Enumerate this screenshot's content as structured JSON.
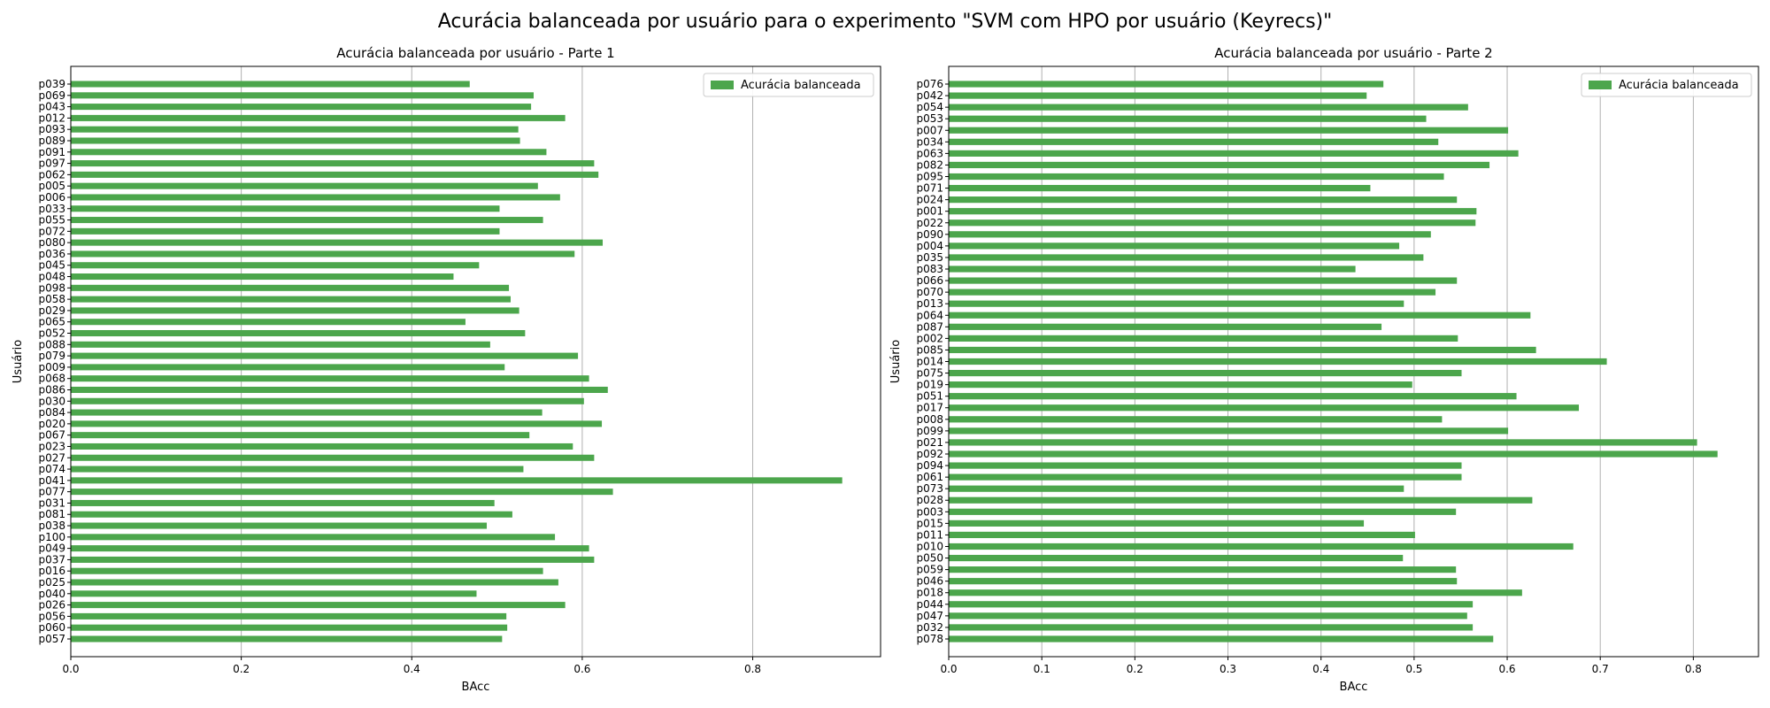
{
  "figure": {
    "title": "Acurácia balanceada por usuário para o experimento \"SVM com HPO por usuário (Keyrecs)\""
  },
  "chart_data": [
    {
      "type": "bar",
      "orientation": "horizontal",
      "title": "Acurácia balanceada por usuário - Parte 1",
      "xlabel": "BAcc",
      "ylabel": "Usuário",
      "xlim": [
        0,
        0.95
      ],
      "xticks": [
        0.0,
        0.2,
        0.4,
        0.6,
        0.8
      ],
      "xtick_labels": [
        "0.0",
        "0.2",
        "0.4",
        "0.6",
        "0.8"
      ],
      "grid": "x",
      "legend": {
        "position": "top-right",
        "entries": [
          "Acurácia balanceada"
        ]
      },
      "bar_color": "#4ca64c",
      "categories": [
        "p039",
        "p069",
        "p043",
        "p012",
        "p093",
        "p089",
        "p091",
        "p097",
        "p062",
        "p005",
        "p006",
        "p033",
        "p055",
        "p072",
        "p080",
        "p036",
        "p045",
        "p048",
        "p098",
        "p058",
        "p029",
        "p065",
        "p052",
        "p088",
        "p079",
        "p009",
        "p068",
        "p086",
        "p030",
        "p084",
        "p020",
        "p067",
        "p023",
        "p027",
        "p074",
        "p041",
        "p077",
        "p031",
        "p081",
        "p038",
        "p100",
        "p049",
        "p037",
        "p016",
        "p025",
        "p040",
        "p026",
        "p056",
        "p060",
        "p057"
      ],
      "series": [
        {
          "name": "Acurácia balanceada",
          "values": [
            0.468,
            0.543,
            0.54,
            0.58,
            0.525,
            0.527,
            0.558,
            0.614,
            0.619,
            0.548,
            0.574,
            0.503,
            0.554,
            0.503,
            0.624,
            0.591,
            0.479,
            0.449,
            0.514,
            0.516,
            0.526,
            0.463,
            0.533,
            0.492,
            0.595,
            0.509,
            0.608,
            0.63,
            0.602,
            0.553,
            0.623,
            0.538,
            0.589,
            0.614,
            0.531,
            0.905,
            0.636,
            0.497,
            0.518,
            0.488,
            0.568,
            0.608,
            0.614,
            0.554,
            0.572,
            0.476,
            0.58,
            0.511,
            0.512,
            0.506
          ]
        }
      ]
    },
    {
      "type": "bar",
      "orientation": "horizontal",
      "title": "Acurácia balanceada por usuário - Parte 2",
      "xlabel": "BAcc",
      "ylabel": "Usuário",
      "xlim": [
        0,
        0.87
      ],
      "xticks": [
        0.0,
        0.1,
        0.2,
        0.3,
        0.4,
        0.5,
        0.6,
        0.7,
        0.8
      ],
      "xtick_labels": [
        "0.0",
        "0.1",
        "0.2",
        "0.3",
        "0.4",
        "0.5",
        "0.6",
        "0.7",
        "0.8"
      ],
      "grid": "x",
      "legend": {
        "position": "top-right",
        "entries": [
          "Acurácia balanceada"
        ]
      },
      "bar_color": "#4ca64c",
      "categories": [
        "p076",
        "p042",
        "p054",
        "p053",
        "p007",
        "p034",
        "p063",
        "p082",
        "p095",
        "p071",
        "p024",
        "p001",
        "p022",
        "p090",
        "p004",
        "p035",
        "p083",
        "p066",
        "p070",
        "p013",
        "p064",
        "p087",
        "p002",
        "p085",
        "p014",
        "p075",
        "p019",
        "p051",
        "p017",
        "p008",
        "p099",
        "p021",
        "p092",
        "p094",
        "p061",
        "p073",
        "p028",
        "p003",
        "p015",
        "p011",
        "p010",
        "p050",
        "p059",
        "p046",
        "p018",
        "p044",
        "p047",
        "p032",
        "p078"
      ],
      "series": [
        {
          "name": "Acurácia balanceada",
          "values": [
            0.467,
            0.449,
            0.558,
            0.513,
            0.601,
            0.526,
            0.612,
            0.581,
            0.532,
            0.453,
            0.546,
            0.567,
            0.566,
            0.518,
            0.484,
            0.51,
            0.437,
            0.546,
            0.523,
            0.489,
            0.625,
            0.465,
            0.547,
            0.631,
            0.707,
            0.551,
            0.498,
            0.61,
            0.677,
            0.53,
            0.601,
            0.804,
            0.826,
            0.551,
            0.551,
            0.489,
            0.627,
            0.545,
            0.446,
            0.501,
            0.671,
            0.488,
            0.545,
            0.546,
            0.616,
            0.563,
            0.557,
            0.563,
            0.585
          ]
        }
      ]
    }
  ]
}
